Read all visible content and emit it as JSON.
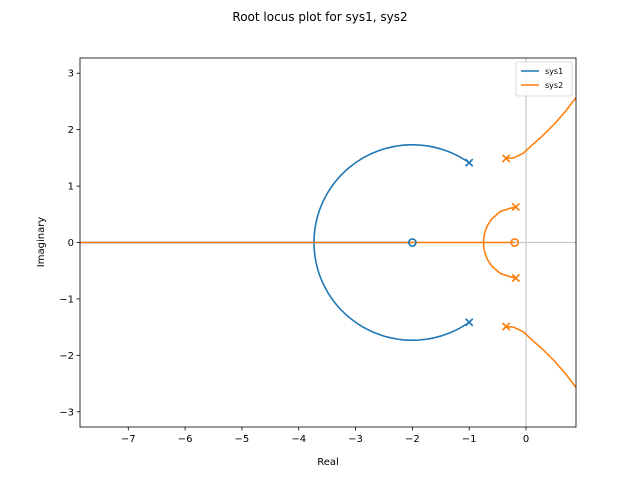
{
  "chart_data": {
    "type": "line",
    "title": "Root locus plot for sys1, sys2",
    "xlabel": "Real",
    "ylabel": "Imaginary",
    "xlim": [
      -7.85,
      0.88
    ],
    "ylim": [
      -3.27,
      3.27
    ],
    "xticks": [
      -7,
      -6,
      -5,
      -4,
      -3,
      -2,
      -1,
      0
    ],
    "yticks": [
      -3,
      -2,
      -1,
      0,
      1,
      2,
      3
    ],
    "xtick_labels": [
      "−7",
      "−6",
      "−5",
      "−4",
      "−3",
      "−2",
      "−1",
      "0"
    ],
    "ytick_labels": [
      "−3",
      "−2",
      "−1",
      "0",
      "1",
      "2",
      "3"
    ],
    "grid": false,
    "reference_lines": {
      "x": 0,
      "y": 0,
      "color": "#c8c8c8"
    },
    "legend_position": "top-right",
    "series": [
      {
        "name": "sys1",
        "color": "#1f77b4",
        "poles": [
          [
            -1,
            1.414
          ],
          [
            -1,
            -1.414
          ]
        ],
        "zeros": [
          [
            -2,
            0
          ]
        ],
        "branches": [
          {
            "circle": {
              "center": [
                -2,
                0
              ],
              "radius": 1.732,
              "from_point": [
                -1,
                1.414
              ],
              "to_point": [
                -1,
                -1.414
              ],
              "through": [
                -3.732,
                0
              ]
            }
          },
          {
            "points": [
              [
                -3.732,
                0
              ],
              [
                -7.85,
                0
              ]
            ]
          },
          {
            "points": [
              [
                -3.732,
                0
              ],
              [
                -2,
                0
              ]
            ]
          }
        ]
      },
      {
        "name": "sys2",
        "color": "#ff7f0e",
        "poles": [
          [
            -0.35,
            1.49
          ],
          [
            -0.35,
            -1.49
          ],
          [
            -0.18,
            0.63
          ],
          [
            -0.18,
            -0.63
          ]
        ],
        "zeros": [
          [
            -0.2,
            0
          ]
        ],
        "branches": [
          {
            "points": [
              [
                -0.35,
                1.49
              ],
              [
                -0.22,
                1.5
              ],
              [
                -0.05,
                1.58
              ],
              [
                0.1,
                1.72
              ],
              [
                0.3,
                1.9
              ],
              [
                0.5,
                2.1
              ],
              [
                0.7,
                2.33
              ],
              [
                0.88,
                2.57
              ]
            ]
          },
          {
            "points": [
              [
                -0.35,
                -1.49
              ],
              [
                -0.22,
                -1.5
              ],
              [
                -0.05,
                -1.58
              ],
              [
                0.1,
                -1.72
              ],
              [
                0.3,
                -1.9
              ],
              [
                0.5,
                -2.1
              ],
              [
                0.7,
                -2.33
              ],
              [
                0.88,
                -2.57
              ]
            ]
          },
          {
            "points": [
              [
                -0.18,
                0.63
              ],
              [
                -0.3,
                0.6
              ],
              [
                -0.45,
                0.55
              ],
              [
                -0.6,
                0.42
              ],
              [
                -0.68,
                0.3
              ],
              [
                -0.72,
                0.2
              ],
              [
                -0.74,
                0.1
              ],
              [
                -0.75,
                0
              ]
            ]
          },
          {
            "points": [
              [
                -0.18,
                -0.63
              ],
              [
                -0.3,
                -0.6
              ],
              [
                -0.45,
                -0.55
              ],
              [
                -0.6,
                -0.42
              ],
              [
                -0.68,
                -0.3
              ],
              [
                -0.72,
                -0.2
              ],
              [
                -0.74,
                -0.1
              ],
              [
                -0.75,
                0
              ]
            ]
          },
          {
            "points": [
              [
                -0.75,
                0
              ],
              [
                -7.85,
                0
              ]
            ]
          },
          {
            "points": [
              [
                -0.75,
                0
              ],
              [
                -0.2,
                0
              ]
            ]
          }
        ]
      }
    ]
  }
}
